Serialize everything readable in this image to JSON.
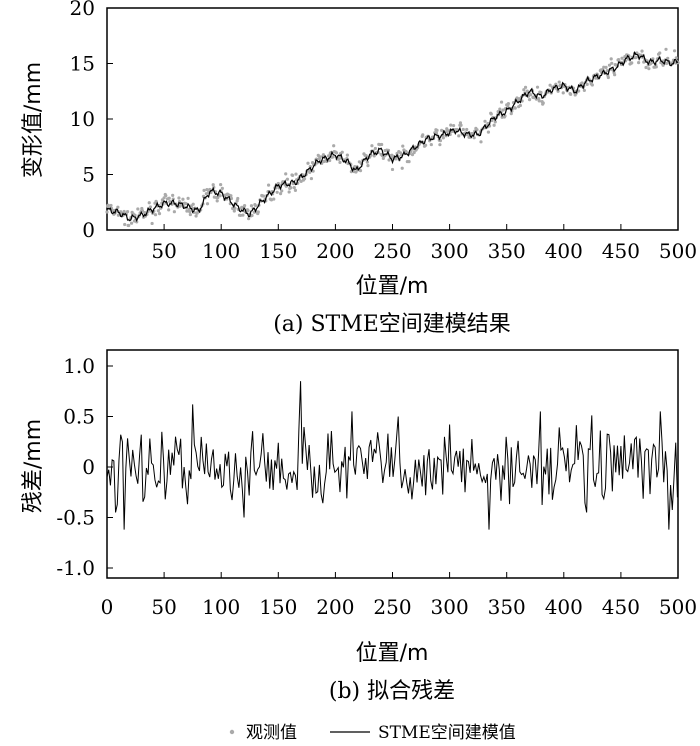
{
  "chart_data": [
    {
      "type": "scatter+line",
      "caption": "(a) STME空间建模结果",
      "xlabel": "位置/m",
      "ylabel": "变形值/mm",
      "xlim": [
        0,
        500
      ],
      "ylim": [
        0,
        20
      ],
      "x_ticks": [
        "50",
        "100",
        "150",
        "200",
        "250",
        "300",
        "350",
        "400",
        "450",
        "500"
      ],
      "y_ticks": [
        "0",
        "5",
        "10",
        "15",
        "20"
      ],
      "trend_knots": [
        [
          0,
          1.8
        ],
        [
          10,
          1.6
        ],
        [
          20,
          1.0
        ],
        [
          30,
          1.3
        ],
        [
          40,
          1.9
        ],
        [
          50,
          2.4
        ],
        [
          60,
          2.4
        ],
        [
          70,
          2.1
        ],
        [
          80,
          1.7
        ],
        [
          90,
          3.5
        ],
        [
          100,
          3.3
        ],
        [
          115,
          2.0
        ],
        [
          125,
          1.4
        ],
        [
          135,
          2.5
        ],
        [
          150,
          4.0
        ],
        [
          165,
          4.3
        ],
        [
          175,
          5.2
        ],
        [
          185,
          6.2
        ],
        [
          200,
          6.8
        ],
        [
          210,
          6.2
        ],
        [
          218,
          5.3
        ],
        [
          230,
          6.8
        ],
        [
          240,
          7.2
        ],
        [
          250,
          6.4
        ],
        [
          260,
          6.7
        ],
        [
          270,
          7.5
        ],
        [
          280,
          8.2
        ],
        [
          295,
          8.6
        ],
        [
          305,
          9.0
        ],
        [
          315,
          8.6
        ],
        [
          325,
          8.6
        ],
        [
          340,
          10.2
        ],
        [
          350,
          10.7
        ],
        [
          360,
          11.6
        ],
        [
          370,
          12.5
        ],
        [
          380,
          12.0
        ],
        [
          390,
          12.7
        ],
        [
          400,
          13.0
        ],
        [
          410,
          12.5
        ],
        [
          420,
          13.4
        ],
        [
          435,
          14.1
        ],
        [
          445,
          14.6
        ],
        [
          455,
          15.4
        ],
        [
          465,
          15.8
        ],
        [
          475,
          15.1
        ],
        [
          485,
          15.3
        ],
        [
          495,
          15.0
        ],
        [
          500,
          15.2
        ]
      ],
      "series": [
        {
          "name": "观测值",
          "style": "points",
          "color": "#aaaaaa"
        },
        {
          "name": "STME空间建模值",
          "style": "line",
          "color": "#000000"
        }
      ]
    },
    {
      "type": "line",
      "caption": "(b) 拟合残差",
      "xlabel": "位置/m",
      "ylabel": "残差/mm",
      "xlim": [
        0,
        500
      ],
      "ylim": [
        -1.0,
        1.0
      ],
      "x_ticks": [
        "0",
        "50",
        "100",
        "150",
        "200",
        "250",
        "300",
        "350",
        "400",
        "450",
        "500"
      ],
      "y_ticks": [
        "1.0",
        "0.5",
        "0",
        "-0.5",
        "-1.0"
      ],
      "peaks": [
        [
          0,
          -0.1
        ],
        [
          8,
          -0.45
        ],
        [
          12,
          0.32
        ],
        [
          15,
          -0.62
        ],
        [
          30,
          0.32
        ],
        [
          65,
          0.28
        ],
        [
          75,
          0.62
        ],
        [
          85,
          -0.6
        ],
        [
          115,
          0.72
        ],
        [
          120,
          -0.5
        ],
        [
          170,
          0.85
        ],
        [
          175,
          0.6
        ],
        [
          205,
          -0.28
        ],
        [
          215,
          0.55
        ],
        [
          255,
          0.5
        ],
        [
          265,
          -0.72
        ],
        [
          300,
          0.42
        ],
        [
          335,
          -0.62
        ],
        [
          355,
          0.62
        ],
        [
          380,
          0.55
        ],
        [
          400,
          0.5
        ],
        [
          420,
          -0.45
        ],
        [
          440,
          0.32
        ],
        [
          485,
          0.55
        ],
        [
          492,
          -0.62
        ],
        [
          500,
          -0.3
        ]
      ]
    }
  ],
  "legend": {
    "items": [
      {
        "label": "观测值",
        "symbol": "point"
      },
      {
        "label": "STME空间建模值",
        "symbol": "line"
      }
    ]
  }
}
